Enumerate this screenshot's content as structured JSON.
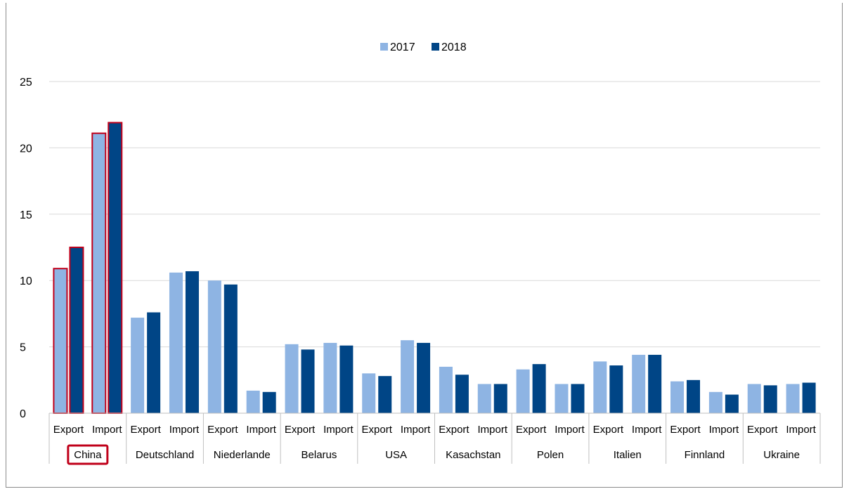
{
  "chart_data": {
    "type": "bar",
    "ylim": [
      0,
      25
    ],
    "yticks": [
      0,
      5,
      10,
      15,
      20,
      25
    ],
    "grid": true,
    "legend_position": "top-center",
    "subcategories": [
      "Export",
      "Import"
    ],
    "countries": [
      "China",
      "Deutschland",
      "Niederlande",
      "Belarus",
      "USA",
      "Kasachstan",
      "Polen",
      "Italien",
      "Finnland",
      "Ukraine"
    ],
    "highlighted_country": "China",
    "colors": {
      "2017": "#8eb4e3",
      "2018": "#004586",
      "highlight": "#c0001a",
      "grid": "#d9d9d9",
      "axis": "#bfbfbf"
    },
    "series": [
      {
        "name": "2017",
        "values": [
          10.9,
          21.1,
          7.2,
          10.6,
          10.0,
          1.7,
          5.2,
          5.3,
          3.0,
          5.5,
          3.5,
          2.2,
          3.3,
          2.2,
          3.9,
          4.4,
          2.4,
          1.6,
          2.2,
          2.2
        ]
      },
      {
        "name": "2018",
        "values": [
          12.5,
          21.9,
          7.6,
          10.7,
          9.7,
          1.6,
          4.8,
          5.1,
          2.8,
          5.3,
          2.9,
          2.2,
          3.7,
          2.2,
          3.6,
          4.4,
          2.5,
          1.4,
          2.1,
          2.3
        ]
      }
    ]
  }
}
